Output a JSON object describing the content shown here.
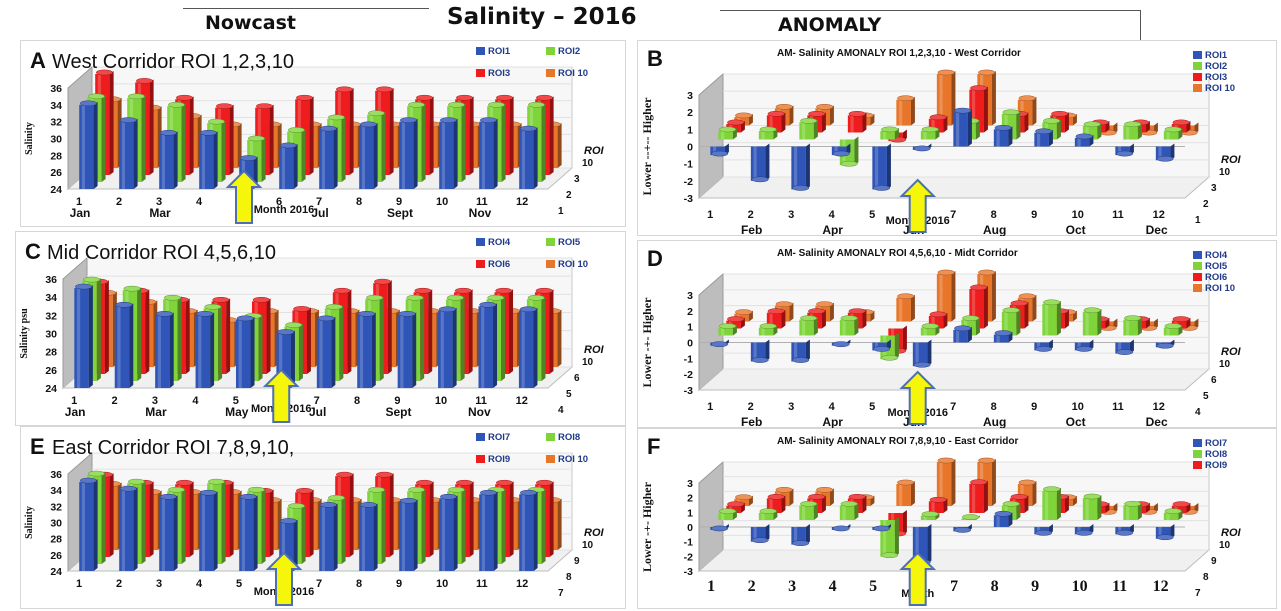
{
  "header": {
    "left": "Nowcast",
    "center": "Salinity – 2016",
    "right": "ANOMALY"
  },
  "colors": {
    "blue": "#2f55b8",
    "green": "#7fd43a",
    "red": "#ee1c1c",
    "orange": "#e8762a",
    "floor": "#f0f0f0",
    "wall": "#bdbdbd",
    "arrow_fill": "#f6f60a",
    "arrow_stroke": "#4d6fb5"
  },
  "chart_data": [
    {
      "id": "A",
      "type": "bar",
      "variant": "3d-clustered",
      "letter": "A",
      "title": "West Corridor   ROI 1,2,3,10",
      "ylabel": "Salinity",
      "ylim": [
        24,
        36
      ],
      "yticks": [
        "24",
        "26",
        "28",
        "30",
        "32",
        "34",
        "36"
      ],
      "categories": [
        "1",
        "2",
        "3",
        "4",
        "5",
        "6",
        "7",
        "8",
        "9",
        "10",
        "11",
        "12"
      ],
      "month_labels": [
        [
          "Jan",
          0
        ],
        [
          "Mar",
          2
        ],
        [
          "Jul",
          6
        ],
        [
          "Sept",
          8
        ],
        [
          "Nov",
          10
        ]
      ],
      "xlabel": "Month 2016",
      "depth_title": "ROI",
      "depth_labels": [
        "10",
        "3",
        "2",
        "1"
      ],
      "legend": [
        {
          "name": "ROI1",
          "color": "blue"
        },
        {
          "name": "ROI2",
          "color": "green"
        },
        {
          "name": "ROI3",
          "color": "red"
        },
        {
          "name": "ROI 10",
          "color": "orange"
        }
      ],
      "series": [
        {
          "name": "ROI1",
          "color": "blue",
          "values": [
            34,
            32,
            30.5,
            30.5,
            27.5,
            29,
            31,
            31.5,
            32,
            32,
            32,
            31
          ]
        },
        {
          "name": "ROI2",
          "color": "green",
          "values": [
            34,
            34,
            33,
            31,
            29,
            30,
            31.5,
            32,
            33,
            33,
            33,
            33
          ]
        },
        {
          "name": "ROI3",
          "color": "red",
          "values": [
            36,
            35,
            33,
            32,
            32,
            33,
            34,
            34,
            33,
            33,
            33,
            33
          ]
        },
        {
          "name": "ROI 10",
          "color": "orange",
          "values": [
            32,
            31,
            30,
            29,
            29,
            29,
            29,
            29,
            29,
            29,
            29,
            29
          ]
        }
      ],
      "arrow_index": 4
    },
    {
      "id": "B",
      "type": "bar",
      "variant": "3d-clustered",
      "letter": "B",
      "title": "AM- Salinity  AMONALY ROI  1,2,3,10  - West Corridor",
      "ylabel": "Lower --+-- Higher",
      "ylim": [
        -3,
        3
      ],
      "yticks": [
        "-3",
        "-2",
        "-1",
        "0",
        "1",
        "2",
        "3"
      ],
      "categories": [
        "1",
        "2",
        "3",
        "4",
        "5",
        "6",
        "7",
        "8",
        "9",
        "10",
        "11",
        "12"
      ],
      "month_labels": [
        [
          "Feb",
          1
        ],
        [
          "Apr",
          3
        ],
        [
          "Jun",
          5
        ],
        [
          "Aug",
          7
        ],
        [
          "Oct",
          9
        ],
        [
          "Dec",
          11
        ]
      ],
      "xlabel": "Month -2016",
      "depth_title": "ROI",
      "depth_labels": [
        "10",
        "3",
        "2",
        "1"
      ],
      "legend": [
        {
          "name": "ROI1",
          "color": "blue"
        },
        {
          "name": "ROI2",
          "color": "green"
        },
        {
          "name": "ROI3",
          "color": "red"
        },
        {
          "name": "ROI 10",
          "color": "orange"
        }
      ],
      "series": [
        {
          "name": "ROI1",
          "color": "blue",
          "values": [
            -0.5,
            -2,
            -2.5,
            -0.5,
            -2.5,
            -0.2,
            2,
            1,
            0.8,
            0.5,
            -0.5,
            -0.8
          ]
        },
        {
          "name": "ROI2",
          "color": "green",
          "values": [
            0.5,
            0.5,
            1,
            -1.5,
            0.5,
            0.5,
            1,
            1.5,
            1,
            0.8,
            0.8,
            0.5
          ]
        },
        {
          "name": "ROI3",
          "color": "red",
          "values": [
            0.5,
            1,
            1,
            1,
            -0.5,
            0.8,
            2.5,
            1,
            1,
            0.5,
            0.5,
            0.5
          ]
        },
        {
          "name": "ROI 10",
          "color": "orange",
          "values": [
            0.5,
            1,
            1,
            0.5,
            1.5,
            3,
            3,
            1.5,
            0.5,
            -0.5,
            -0.5,
            -0.5
          ]
        }
      ],
      "arrow_index": 5
    },
    {
      "id": "C",
      "type": "bar",
      "variant": "3d-clustered",
      "letter": "C",
      "title": "Mid Corridor   ROI 4,5,6,10",
      "ylabel": "Salinity psu",
      "ylim": [
        24,
        36
      ],
      "yticks": [
        "24",
        "26",
        "28",
        "30",
        "32",
        "34",
        "36"
      ],
      "categories": [
        "1",
        "2",
        "3",
        "4",
        "5",
        "6",
        "7",
        "8",
        "9",
        "10",
        "11",
        "12"
      ],
      "month_labels": [
        [
          "Jan",
          0
        ],
        [
          "Mar",
          2
        ],
        [
          "May",
          4
        ],
        [
          "Jul",
          6
        ],
        [
          "Sept",
          8
        ],
        [
          "Nov",
          10
        ]
      ],
      "xlabel": "Month 2016",
      "depth_title": "ROI",
      "depth_labels": [
        "10",
        "6",
        "5",
        "4"
      ],
      "legend": [
        {
          "name": "ROI4",
          "color": "blue"
        },
        {
          "name": "ROI5",
          "color": "green"
        },
        {
          "name": "ROI6",
          "color": "red"
        },
        {
          "name": "ROI 10",
          "color": "orange"
        }
      ],
      "series": [
        {
          "name": "ROI4",
          "color": "blue",
          "values": [
            35,
            33,
            32,
            32,
            31.5,
            30,
            31.5,
            32,
            32,
            32.5,
            33,
            32.5
          ]
        },
        {
          "name": "ROI5",
          "color": "green",
          "values": [
            35,
            34,
            33,
            32,
            31,
            30,
            32,
            33,
            33,
            33,
            33,
            33
          ]
        },
        {
          "name": "ROI6",
          "color": "red",
          "values": [
            34,
            33,
            32,
            32,
            32,
            31,
            33,
            34,
            33,
            33,
            33,
            33
          ]
        },
        {
          "name": "ROI 10",
          "color": "orange",
          "values": [
            32,
            31,
            30,
            29,
            30,
            30,
            30,
            30,
            30,
            30,
            30,
            30
          ]
        }
      ],
      "arrow_index": 5
    },
    {
      "id": "D",
      "type": "bar",
      "variant": "3d-clustered",
      "letter": "D",
      "title": "AM- Salinity  AMONALY ROI  4,5,6,10  - Midt Corridor",
      "ylabel": "Lower -+- Higher",
      "ylim": [
        -3,
        3
      ],
      "yticks": [
        "-3",
        "-2",
        "-1",
        "0",
        "1",
        "2",
        "3"
      ],
      "categories": [
        "1",
        "2",
        "3",
        "4",
        "5",
        "6",
        "7",
        "8",
        "9",
        "10",
        "11",
        "12"
      ],
      "month_labels": [
        [
          "Feb",
          1
        ],
        [
          "Apr",
          3
        ],
        [
          "Jun",
          5
        ],
        [
          "Aug",
          7
        ],
        [
          "Oct",
          9
        ],
        [
          "Dec",
          11
        ]
      ],
      "xlabel": "Month 2016",
      "depth_title": "ROI",
      "depth_labels": [
        "10",
        "6",
        "5",
        "4"
      ],
      "legend": [
        {
          "name": "ROI4",
          "color": "blue"
        },
        {
          "name": "ROI5",
          "color": "green"
        },
        {
          "name": "ROI6",
          "color": "red"
        },
        {
          "name": "ROI 10",
          "color": "orange"
        }
      ],
      "series": [
        {
          "name": "ROI4",
          "color": "blue",
          "values": [
            -0.2,
            -1.2,
            -1.2,
            -0.2,
            -0.5,
            -1.5,
            0.8,
            0.5,
            -0.5,
            -0.5,
            -0.7,
            -0.3
          ]
        },
        {
          "name": "ROI5",
          "color": "green",
          "values": [
            0.5,
            0.5,
            1,
            1,
            -1.5,
            0.5,
            1,
            1.5,
            2,
            1.5,
            1,
            0.5
          ]
        },
        {
          "name": "ROI6",
          "color": "red",
          "values": [
            0.5,
            1,
            1,
            1,
            -1.5,
            0.8,
            2.5,
            1.5,
            1,
            0.5,
            0.5,
            0.5
          ]
        },
        {
          "name": "ROI 10",
          "color": "orange",
          "values": [
            0.5,
            1,
            1,
            0.5,
            1.5,
            3,
            3,
            1.5,
            0.5,
            -0.5,
            -0.5,
            -0.5
          ]
        }
      ],
      "arrow_index": 5
    },
    {
      "id": "E",
      "type": "bar",
      "variant": "3d-clustered",
      "letter": "E",
      "title": "East Corridor   ROI 7,8,9,10,",
      "ylabel": "Salinity",
      "ylim": [
        24,
        36
      ],
      "yticks": [
        "24",
        "26",
        "28",
        "30",
        "32",
        "34",
        "36"
      ],
      "categories": [
        "1",
        "2",
        "3",
        "4",
        "5",
        "6",
        "7",
        "8",
        "9",
        "10",
        "11",
        "12"
      ],
      "month_labels": [],
      "xlabel": "Month 2016",
      "depth_title": "ROI",
      "depth_labels": [
        "10",
        "9",
        "8",
        "7"
      ],
      "legend": [
        {
          "name": "ROI7",
          "color": "blue"
        },
        {
          "name": "ROI8",
          "color": "green"
        },
        {
          "name": "ROI9",
          "color": "red"
        },
        {
          "name": "ROI 10",
          "color": "orange"
        }
      ],
      "series": [
        {
          "name": "ROI7",
          "color": "blue",
          "values": [
            35,
            34,
            33,
            33.5,
            33,
            30,
            32,
            32,
            32.5,
            33,
            33.5,
            33.5
          ]
        },
        {
          "name": "ROI8",
          "color": "green",
          "values": [
            35,
            34,
            33,
            34,
            33,
            31,
            32,
            33,
            33,
            33,
            33,
            33
          ]
        },
        {
          "name": "ROI9",
          "color": "red",
          "values": [
            34,
            33,
            33,
            33,
            32,
            32,
            34,
            34,
            33,
            33,
            33,
            33
          ]
        },
        {
          "name": "ROI 10",
          "color": "orange",
          "values": [
            32,
            31,
            31,
            31,
            30,
            30,
            30,
            30,
            30,
            30,
            30,
            30
          ]
        }
      ],
      "arrow_index": 5
    },
    {
      "id": "F",
      "type": "bar",
      "variant": "3d-clustered",
      "letter": "F",
      "title": "AM- Salinity  AMONALY ROI  7,8,9,10  - East Corridor",
      "ylabel": "Lower -+- Higher",
      "ylim": [
        -3,
        3
      ],
      "yticks": [
        "-3",
        "-2",
        "-1",
        "0",
        "1",
        "2",
        "3"
      ],
      "categories": [
        "1",
        "2",
        "3",
        "4",
        "5",
        "6",
        "7",
        "8",
        "9",
        "10",
        "11",
        "12"
      ],
      "month_labels": [],
      "xlabel": "Month",
      "depth_title": "ROI",
      "depth_labels": [
        "10",
        "9",
        "8",
        "7"
      ],
      "legend": [
        {
          "name": "ROI7",
          "color": "blue"
        },
        {
          "name": "ROI8",
          "color": "green"
        },
        {
          "name": "ROI9",
          "color": "red"
        }
      ],
      "series": [
        {
          "name": "ROI7",
          "color": "blue",
          "values": [
            -0.2,
            -1,
            -1.2,
            -0.2,
            -0.2,
            -2.5,
            -0.3,
            0.8,
            -0.5,
            -0.5,
            -0.5,
            -0.8
          ]
        },
        {
          "name": "ROI8",
          "color": "green",
          "values": [
            0.5,
            0.5,
            1,
            1,
            -2.5,
            0.3,
            0.1,
            1,
            2,
            1.5,
            1,
            0.5
          ]
        },
        {
          "name": "ROI9",
          "color": "red",
          "values": [
            0.5,
            1,
            1,
            1,
            -1.5,
            0.8,
            2,
            1,
            1,
            0.5,
            0.5,
            0.5
          ]
        },
        {
          "name": "ROI 10",
          "color": "orange",
          "values": [
            0.5,
            1,
            1,
            0.5,
            1.5,
            3,
            3,
            1.5,
            0.5,
            -0.5,
            -0.5,
            -0.5
          ]
        }
      ],
      "arrow_index": 5
    }
  ]
}
